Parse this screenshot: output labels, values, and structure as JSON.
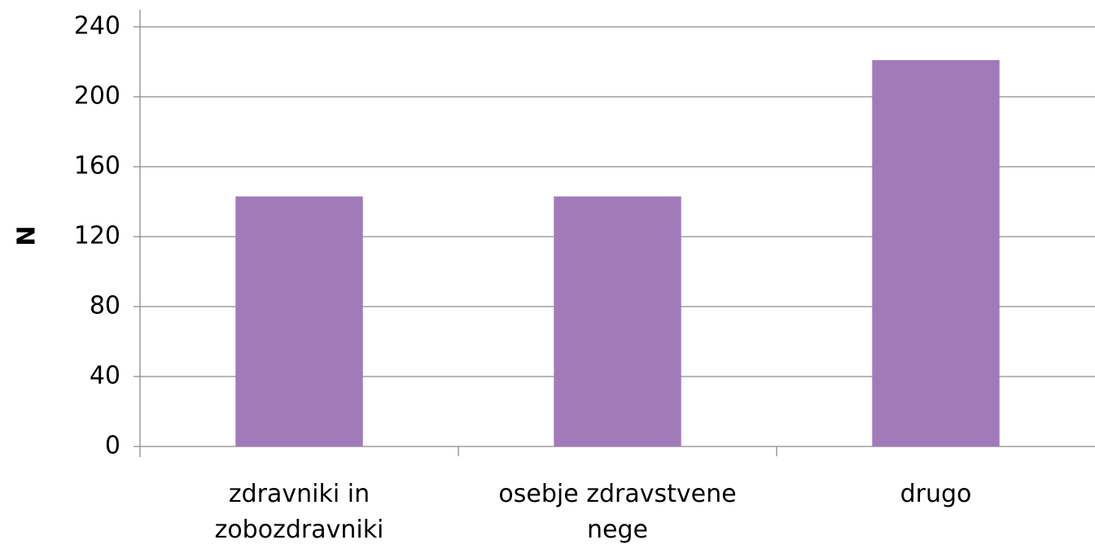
{
  "chart_data": {
    "type": "bar",
    "y_label": "N",
    "categories": [
      "zdravniki in zobozdravniki",
      "osebje zdravstvene nege",
      "drugo"
    ],
    "values": [
      143,
      143,
      221
    ],
    "color": "#a17aba",
    "ylim": [
      0,
      240
    ],
    "yticks": [
      0,
      40,
      80,
      120,
      160,
      200,
      240
    ],
    "grid": true
  }
}
